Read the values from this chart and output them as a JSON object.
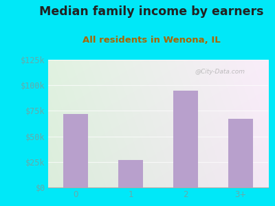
{
  "title": "Median family income by earners",
  "subtitle": "All residents in Wenona, IL",
  "categories": [
    "0",
    "1",
    "2",
    "3+"
  ],
  "values": [
    72000,
    27000,
    95000,
    67000
  ],
  "bar_color": "#b8a0cc",
  "title_color": "#222222",
  "subtitle_color": "#aa6600",
  "tick_label_color": "#66aaaa",
  "background_outer": "#00e8f8",
  "ytick_labels": [
    "$0",
    "$25k",
    "$50k",
    "$75k",
    "$100k",
    "$125k"
  ],
  "ytick_values": [
    0,
    25000,
    50000,
    75000,
    100000,
    125000
  ],
  "ylim": [
    0,
    125000
  ],
  "watermark": "@City-Data.com",
  "title_fontsize": 12.5,
  "subtitle_fontsize": 9.5,
  "tick_fontsize": 8.5
}
